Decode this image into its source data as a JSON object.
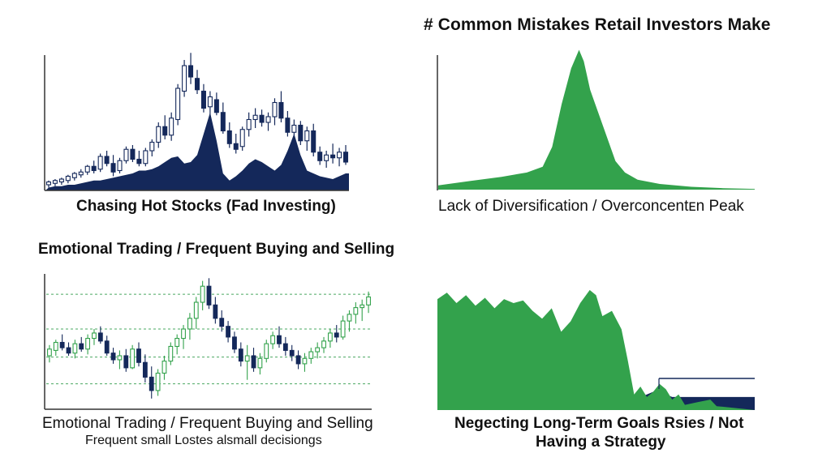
{
  "page_title": "# Common Mistakes Retail Investors Make",
  "captions": {
    "top_left": "Chasing Hot Stocks (Fad Investing)",
    "top_right": "Lack of Diversification / Overconcentᴇn Peak",
    "bottom_left_heading": "Emotional Trading / Frequent Buying and Selling",
    "bottom_left": "Emotional Trading / Frequent Buying and Selling",
    "bottom_left_sub": "Frequent small Lostes alsmall decisiongs",
    "bottom_right_line1": "Negecting Long-Term Goals Rsies / Not",
    "bottom_right_line2": "Having a Strategy"
  },
  "colors": {
    "navy": "#14285a",
    "green": "#33a24c",
    "green_dark": "#1f7a36",
    "axis": "#333333",
    "grid_green": "#4aa860"
  },
  "chart_data": [
    {
      "type": "candlestick",
      "caption": "Chasing Hot Stocks (Fad Investing)",
      "xlabel": "",
      "ylabel": "",
      "ylim": [
        0,
        100
      ],
      "candles": [
        {
          "o": 4,
          "h": 7,
          "l": 2,
          "c": 6
        },
        {
          "o": 5,
          "h": 8,
          "l": 3,
          "c": 7
        },
        {
          "o": 6,
          "h": 9,
          "l": 4,
          "c": 8
        },
        {
          "o": 7,
          "h": 11,
          "l": 5,
          "c": 10
        },
        {
          "o": 9,
          "h": 13,
          "l": 7,
          "c": 12
        },
        {
          "o": 11,
          "h": 15,
          "l": 9,
          "c": 13
        },
        {
          "o": 13,
          "h": 18,
          "l": 11,
          "c": 17
        },
        {
          "o": 17,
          "h": 21,
          "l": 12,
          "c": 14
        },
        {
          "o": 15,
          "h": 26,
          "l": 13,
          "c": 24
        },
        {
          "o": 24,
          "h": 28,
          "l": 17,
          "c": 19
        },
        {
          "o": 19,
          "h": 25,
          "l": 10,
          "c": 13
        },
        {
          "o": 14,
          "h": 23,
          "l": 12,
          "c": 21
        },
        {
          "o": 21,
          "h": 31,
          "l": 19,
          "c": 29
        },
        {
          "o": 29,
          "h": 32,
          "l": 20,
          "c": 22
        },
        {
          "o": 22,
          "h": 28,
          "l": 17,
          "c": 19
        },
        {
          "o": 19,
          "h": 30,
          "l": 17,
          "c": 28
        },
        {
          "o": 28,
          "h": 36,
          "l": 24,
          "c": 34
        },
        {
          "o": 34,
          "h": 48,
          "l": 30,
          "c": 45
        },
        {
          "o": 45,
          "h": 53,
          "l": 36,
          "c": 39
        },
        {
          "o": 39,
          "h": 55,
          "l": 35,
          "c": 51
        },
        {
          "o": 50,
          "h": 75,
          "l": 46,
          "c": 72
        },
        {
          "o": 70,
          "h": 92,
          "l": 66,
          "c": 88
        },
        {
          "o": 88,
          "h": 97,
          "l": 75,
          "c": 80
        },
        {
          "o": 79,
          "h": 85,
          "l": 68,
          "c": 71
        },
        {
          "o": 70,
          "h": 75,
          "l": 55,
          "c": 58
        },
        {
          "o": 59,
          "h": 70,
          "l": 52,
          "c": 66
        },
        {
          "o": 64,
          "h": 69,
          "l": 53,
          "c": 55
        },
        {
          "o": 55,
          "h": 62,
          "l": 40,
          "c": 42
        },
        {
          "o": 42,
          "h": 48,
          "l": 30,
          "c": 33
        },
        {
          "o": 33,
          "h": 40,
          "l": 26,
          "c": 29
        },
        {
          "o": 31,
          "h": 45,
          "l": 28,
          "c": 43
        },
        {
          "o": 43,
          "h": 55,
          "l": 38,
          "c": 50
        },
        {
          "o": 50,
          "h": 58,
          "l": 44,
          "c": 53
        },
        {
          "o": 53,
          "h": 57,
          "l": 45,
          "c": 48
        },
        {
          "o": 48,
          "h": 55,
          "l": 42,
          "c": 52
        },
        {
          "o": 52,
          "h": 65,
          "l": 46,
          "c": 62
        },
        {
          "o": 62,
          "h": 70,
          "l": 48,
          "c": 51
        },
        {
          "o": 51,
          "h": 56,
          "l": 38,
          "c": 41
        },
        {
          "o": 41,
          "h": 50,
          "l": 34,
          "c": 46
        },
        {
          "o": 46,
          "h": 49,
          "l": 32,
          "c": 35
        },
        {
          "o": 35,
          "h": 45,
          "l": 28,
          "c": 42
        },
        {
          "o": 42,
          "h": 47,
          "l": 24,
          "c": 27
        },
        {
          "o": 27,
          "h": 31,
          "l": 18,
          "c": 21
        },
        {
          "o": 21,
          "h": 28,
          "l": 16,
          "c": 25
        },
        {
          "o": 25,
          "h": 33,
          "l": 19,
          "c": 23
        },
        {
          "o": 23,
          "h": 30,
          "l": 17,
          "c": 27
        },
        {
          "o": 27,
          "h": 32,
          "l": 18,
          "c": 20
        }
      ],
      "volume": [
        2,
        3,
        3,
        4,
        4,
        5,
        6,
        7,
        7,
        8,
        9,
        10,
        11,
        12,
        14,
        14,
        15,
        17,
        20,
        23,
        24,
        19,
        20,
        25,
        40,
        55,
        35,
        12,
        7,
        10,
        14,
        19,
        22,
        20,
        17,
        14,
        18,
        28,
        40,
        25,
        14,
        12,
        10,
        9,
        8,
        10,
        12
      ]
    },
    {
      "type": "area",
      "caption": "Lack of Diversification / Overconcentᴇn Peak",
      "xlabel": "",
      "ylabel": "",
      "ylim": [
        0,
        100
      ],
      "x": [
        0,
        0.1,
        0.2,
        0.28,
        0.33,
        0.36,
        0.39,
        0.42,
        0.445,
        0.46,
        0.48,
        0.52,
        0.56,
        0.59,
        0.63,
        0.7,
        0.8,
        0.9,
        1.0
      ],
      "values": [
        3,
        6,
        9,
        12,
        16,
        30,
        60,
        85,
        98,
        90,
        70,
        45,
        20,
        12,
        7,
        4,
        2,
        1,
        0.5
      ]
    },
    {
      "type": "candlestick",
      "caption": "Emotional Trading / Frequent Buying and Selling",
      "xlabel": "",
      "ylabel": "",
      "ylim": [
        0,
        100
      ],
      "reference_lines": [
        19,
        39,
        60,
        86
      ],
      "candles": [
        {
          "o": 40,
          "h": 48,
          "l": 35,
          "c": 45
        },
        {
          "o": 44,
          "h": 52,
          "l": 40,
          "c": 50
        },
        {
          "o": 50,
          "h": 56,
          "l": 44,
          "c": 46
        },
        {
          "o": 46,
          "h": 50,
          "l": 40,
          "c": 42
        },
        {
          "o": 42,
          "h": 52,
          "l": 38,
          "c": 49
        },
        {
          "o": 49,
          "h": 54,
          "l": 43,
          "c": 45
        },
        {
          "o": 45,
          "h": 56,
          "l": 41,
          "c": 53
        },
        {
          "o": 53,
          "h": 60,
          "l": 48,
          "c": 57
        },
        {
          "o": 57,
          "h": 62,
          "l": 49,
          "c": 51
        },
        {
          "o": 51,
          "h": 55,
          "l": 40,
          "c": 42
        },
        {
          "o": 42,
          "h": 46,
          "l": 34,
          "c": 37
        },
        {
          "o": 37,
          "h": 44,
          "l": 30,
          "c": 40
        },
        {
          "o": 40,
          "h": 45,
          "l": 28,
          "c": 31
        },
        {
          "o": 31,
          "h": 48,
          "l": 30,
          "c": 45
        },
        {
          "o": 45,
          "h": 50,
          "l": 32,
          "c": 35
        },
        {
          "o": 35,
          "h": 41,
          "l": 20,
          "c": 24
        },
        {
          "o": 24,
          "h": 32,
          "l": 8,
          "c": 14
        },
        {
          "o": 14,
          "h": 30,
          "l": 10,
          "c": 27
        },
        {
          "o": 27,
          "h": 40,
          "l": 22,
          "c": 36
        },
        {
          "o": 36,
          "h": 50,
          "l": 33,
          "c": 47
        },
        {
          "o": 47,
          "h": 56,
          "l": 41,
          "c": 53
        },
        {
          "o": 53,
          "h": 63,
          "l": 45,
          "c": 60
        },
        {
          "o": 60,
          "h": 72,
          "l": 52,
          "c": 68
        },
        {
          "o": 68,
          "h": 84,
          "l": 60,
          "c": 80
        },
        {
          "o": 80,
          "h": 96,
          "l": 74,
          "c": 92
        },
        {
          "o": 92,
          "h": 98,
          "l": 75,
          "c": 78
        },
        {
          "o": 78,
          "h": 84,
          "l": 64,
          "c": 68
        },
        {
          "o": 68,
          "h": 74,
          "l": 58,
          "c": 62
        },
        {
          "o": 62,
          "h": 66,
          "l": 50,
          "c": 54
        },
        {
          "o": 54,
          "h": 58,
          "l": 42,
          "c": 45
        },
        {
          "o": 45,
          "h": 50,
          "l": 32,
          "c": 36
        },
        {
          "o": 36,
          "h": 48,
          "l": 22,
          "c": 40
        },
        {
          "o": 40,
          "h": 46,
          "l": 28,
          "c": 31
        },
        {
          "o": 31,
          "h": 42,
          "l": 26,
          "c": 38
        },
        {
          "o": 38,
          "h": 52,
          "l": 35,
          "c": 49
        },
        {
          "o": 49,
          "h": 58,
          "l": 45,
          "c": 55
        },
        {
          "o": 55,
          "h": 62,
          "l": 46,
          "c": 49
        },
        {
          "o": 49,
          "h": 54,
          "l": 40,
          "c": 44
        },
        {
          "o": 44,
          "h": 48,
          "l": 36,
          "c": 40
        },
        {
          "o": 40,
          "h": 44,
          "l": 30,
          "c": 34
        },
        {
          "o": 34,
          "h": 42,
          "l": 28,
          "c": 38
        },
        {
          "o": 38,
          "h": 46,
          "l": 34,
          "c": 43
        },
        {
          "o": 43,
          "h": 50,
          "l": 38,
          "c": 46
        },
        {
          "o": 46,
          "h": 54,
          "l": 42,
          "c": 51
        },
        {
          "o": 51,
          "h": 60,
          "l": 46,
          "c": 57
        },
        {
          "o": 57,
          "h": 63,
          "l": 50,
          "c": 54
        },
        {
          "o": 54,
          "h": 70,
          "l": 52,
          "c": 66
        },
        {
          "o": 66,
          "h": 74,
          "l": 58,
          "c": 71
        },
        {
          "o": 71,
          "h": 80,
          "l": 64,
          "c": 76
        },
        {
          "o": 76,
          "h": 82,
          "l": 66,
          "c": 78
        },
        {
          "o": 78,
          "h": 88,
          "l": 72,
          "c": 84
        }
      ]
    },
    {
      "type": "area",
      "caption": "Negecting Long-Term Goals Rsies / Not Having a Strategy",
      "xlabel": "",
      "ylabel": "",
      "ylim": [
        0,
        100
      ],
      "x": [
        0,
        0.03,
        0.06,
        0.09,
        0.12,
        0.15,
        0.18,
        0.21,
        0.24,
        0.27,
        0.3,
        0.33,
        0.36,
        0.39,
        0.42,
        0.45,
        0.48,
        0.5,
        0.52,
        0.55,
        0.58,
        0.6,
        0.62,
        0.64,
        0.66,
        0.68,
        0.7,
        0.72,
        0.74,
        0.76,
        0.78,
        0.82,
        0.86,
        0.88,
        0.92,
        1.0
      ],
      "values": [
        85,
        90,
        82,
        88,
        80,
        86,
        78,
        85,
        82,
        84,
        76,
        70,
        78,
        60,
        68,
        82,
        92,
        88,
        72,
        76,
        62,
        38,
        12,
        18,
        10,
        14,
        20,
        16,
        8,
        12,
        4,
        6,
        8,
        3,
        2,
        0
      ],
      "navy_values": [
        0,
        0,
        0,
        0,
        0,
        0,
        0,
        0,
        0,
        0,
        0,
        0,
        0,
        0,
        0,
        0,
        0,
        0,
        0,
        0,
        0,
        0,
        10,
        10,
        12,
        14,
        18,
        12,
        10,
        10,
        10,
        10,
        10,
        10,
        10,
        10
      ],
      "reference_line": 20
    }
  ]
}
